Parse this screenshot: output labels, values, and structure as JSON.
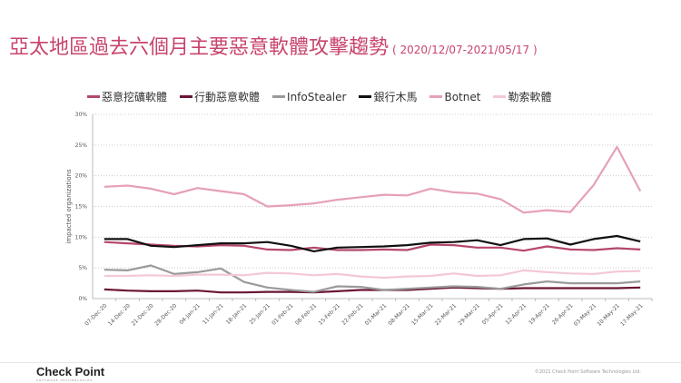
{
  "title": "亞太地區過去六個月主要惡意軟體攻擊趨勢",
  "subtitle": "( 2020/12/07-2021/05/17 )",
  "footer": {
    "logo": "Check Point",
    "logo_tagline": "SOFTWARE TECHNOLOGIES",
    "copyright": "©2021 Check Point Software Technologies Ltd."
  },
  "chart_data": {
    "type": "line",
    "ylabel": "impacted organizations",
    "ylim": [
      0,
      30
    ],
    "yticks": [
      "0%",
      "5%",
      "10%",
      "15%",
      "20%",
      "25%",
      "30%"
    ],
    "grid": true,
    "legend_position": "top",
    "x": [
      "07-Dec-20",
      "14-Dec-20",
      "21-Dec-20",
      "28-Dec-20",
      "04-Jan-21",
      "11-Jan-21",
      "18-Jan-21",
      "25-Jan-21",
      "01-Feb-21",
      "08-Feb-21",
      "15-Feb-21",
      "22-Feb-21",
      "01-Mar-21",
      "08-Mar-21",
      "15-Mar-21",
      "22-Mar-21",
      "29-Mar-21",
      "05-Apr-21",
      "12-Apr-21",
      "19-Apr-21",
      "26-Apr-21",
      "03-May-21",
      "10-May-21",
      "17-May-21"
    ],
    "series": [
      {
        "name": "惡意挖礦軟體",
        "color": "#b5466f",
        "values": [
          9.2,
          9.0,
          8.8,
          8.6,
          8.5,
          8.7,
          8.6,
          8.0,
          7.9,
          8.3,
          7.9,
          7.9,
          8.0,
          7.9,
          8.8,
          8.7,
          8.3,
          8.3,
          7.8,
          8.5,
          8.0,
          7.9,
          8.2,
          8.0
        ]
      },
      {
        "name": "行動惡意軟體",
        "color": "#6b1436",
        "values": [
          1.5,
          1.3,
          1.2,
          1.2,
          1.3,
          1.0,
          1.0,
          1.1,
          1.1,
          1.0,
          1.2,
          1.4,
          1.4,
          1.4,
          1.6,
          1.8,
          1.7,
          1.6,
          1.7,
          1.7,
          1.7,
          1.7,
          1.7,
          1.8
        ]
      },
      {
        "name": "InfoStealer",
        "color": "#9a9a9a",
        "values": [
          4.7,
          4.6,
          5.4,
          4.0,
          4.3,
          4.9,
          2.7,
          1.8,
          1.4,
          1.1,
          2.0,
          1.9,
          1.4,
          1.6,
          1.8,
          2.0,
          1.9,
          1.6,
          2.3,
          2.8,
          2.5,
          2.5,
          2.5,
          2.8
        ]
      },
      {
        "name": "銀行木馬",
        "color": "#111111",
        "values": [
          9.7,
          9.7,
          8.6,
          8.4,
          8.7,
          9.0,
          9.0,
          9.2,
          8.6,
          7.7,
          8.3,
          8.4,
          8.5,
          8.7,
          9.1,
          9.2,
          9.5,
          8.7,
          9.7,
          9.8,
          8.8,
          9.7,
          10.2,
          9.3
        ]
      },
      {
        "name": "Botnet",
        "color": "#e6a0b6",
        "values": [
          18.2,
          18.4,
          17.9,
          17.0,
          18.0,
          17.5,
          17.0,
          15.0,
          15.2,
          15.5,
          16.1,
          16.5,
          16.9,
          16.8,
          17.9,
          17.3,
          17.1,
          16.2,
          14.0,
          14.4,
          14.1,
          18.5,
          24.7,
          17.5
        ]
      },
      {
        "name": "勒索軟體",
        "color": "#f4c8d6",
        "values": [
          3.7,
          3.7,
          3.8,
          3.7,
          3.9,
          3.9,
          3.8,
          4.2,
          4.1,
          3.8,
          4.0,
          3.6,
          3.4,
          3.6,
          3.7,
          4.1,
          3.7,
          3.8,
          4.6,
          4.3,
          4.1,
          4.0,
          4.4,
          4.5
        ]
      }
    ]
  }
}
